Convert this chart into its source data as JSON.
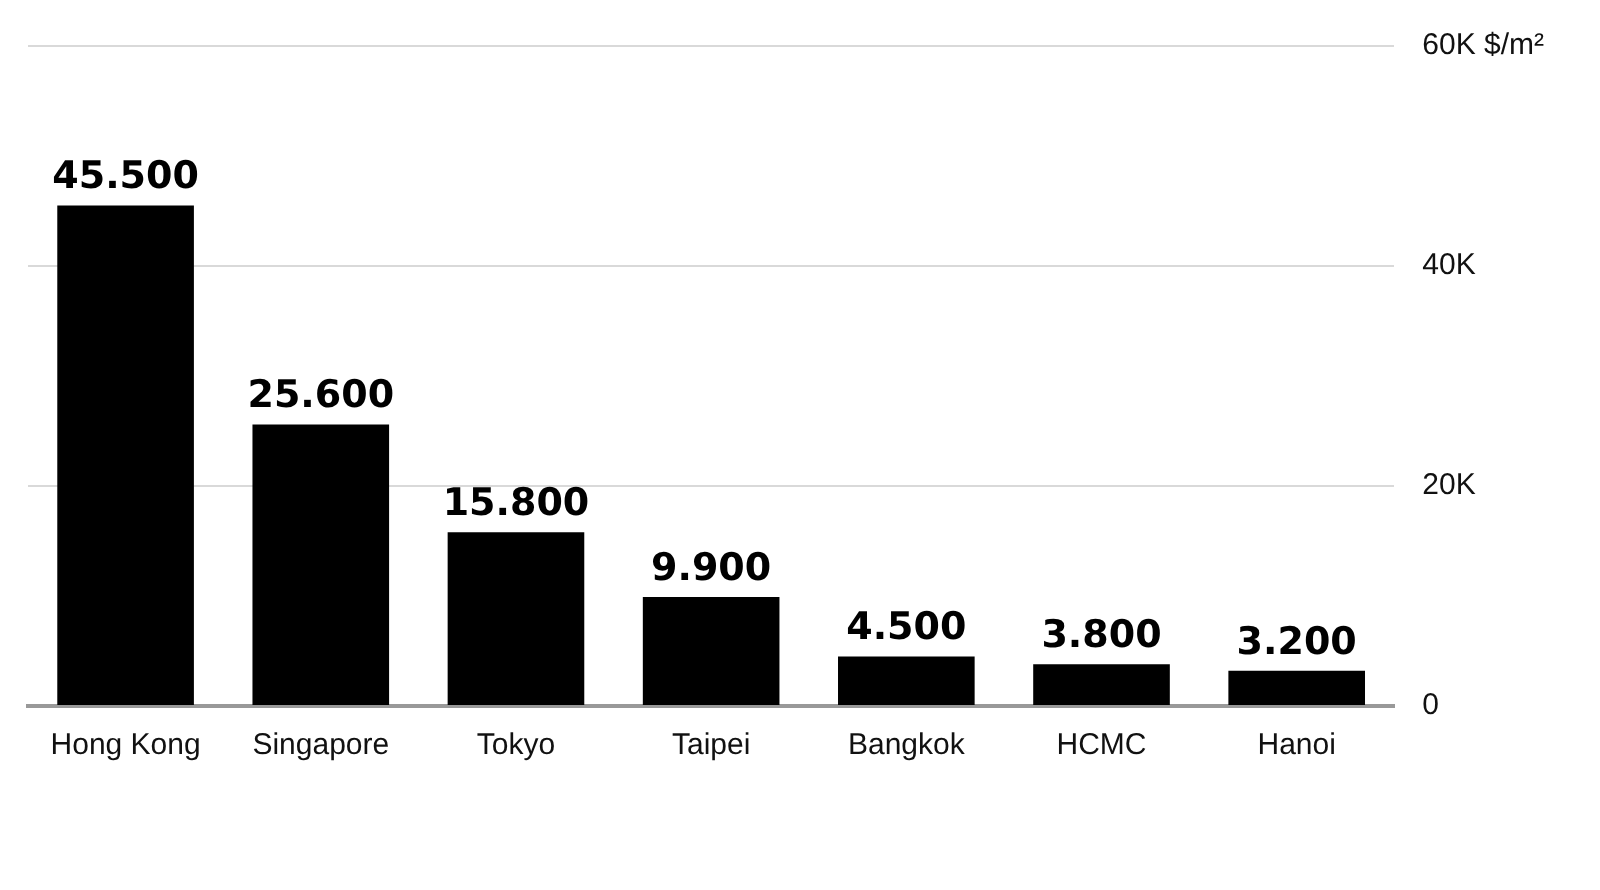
{
  "chart_data": {
    "type": "bar",
    "categories": [
      "Hong Kong",
      "Singapore",
      "Tokyo",
      "Taipei",
      "Bangkok",
      "HCMC",
      "Hanoi"
    ],
    "values": [
      45500,
      25600,
      15800,
      9900,
      4500,
      3800,
      3200
    ],
    "value_labels": [
      "45.500",
      "25.600",
      "15.800",
      "9.900",
      "4.500",
      "3.800",
      "3.200"
    ],
    "color": "#000000",
    "ylim": [
      0,
      60000
    ],
    "yticks": [
      0,
      {
        "value": 20000,
        "label": "20K"
      },
      {
        "value": 40000,
        "label": "40K"
      },
      {
        "value": 60000,
        "label": "60K $/m²"
      }
    ],
    "grid": "y",
    "legend": false
  }
}
